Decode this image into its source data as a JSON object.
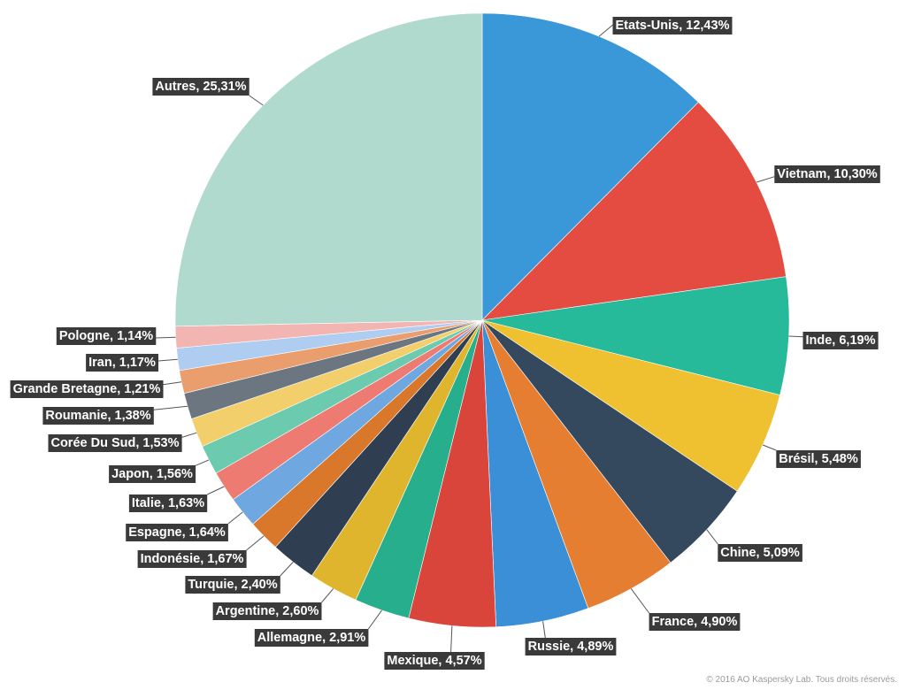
{
  "chart_data": {
    "type": "pie",
    "start": "top",
    "direction": "clockwise",
    "slices": [
      {
        "label": "Etats-Unis",
        "value": 12.43,
        "display": "Etats-Unis, 12,43%",
        "color": "#3A98D8"
      },
      {
        "label": "Vietnam",
        "value": 10.3,
        "display": "Vietnam, 10,30%",
        "color": "#E44C41"
      },
      {
        "label": "Inde",
        "value": 6.19,
        "display": "Inde, 6,19%",
        "color": "#26B99A"
      },
      {
        "label": "Brésil",
        "value": 5.48,
        "display": "Brésil, 5,48%",
        "color": "#EFC130"
      },
      {
        "label": "Chine",
        "value": 5.09,
        "display": "Chine, 5,09%",
        "color": "#34495E"
      },
      {
        "label": "France",
        "value": 4.9,
        "display": "France, 4,90%",
        "color": "#E57E30"
      },
      {
        "label": "Russie",
        "value": 4.89,
        "display": "Russie, 4,89%",
        "color": "#3A8FD6"
      },
      {
        "label": "Mexique",
        "value": 4.57,
        "display": "Mexique, 4,57%",
        "color": "#D9453A"
      },
      {
        "label": "Allemagne",
        "value": 2.91,
        "display": "Allemagne, 2,91%",
        "color": "#27AE8C"
      },
      {
        "label": "Argentine",
        "value": 2.6,
        "display": "Argentine, 2,60%",
        "color": "#E0B52E"
      },
      {
        "label": "Turquie",
        "value": 2.4,
        "display": "Turquie, 2,40%",
        "color": "#2F3E50"
      },
      {
        "label": "Indonésie",
        "value": 1.67,
        "display": "Indonésie, 1,67%",
        "color": "#D9772A"
      },
      {
        "label": "Espagne",
        "value": 1.64,
        "display": "Espagne, 1,64%",
        "color": "#6FA8E0"
      },
      {
        "label": "Italie",
        "value": 1.63,
        "display": "Italie, 1,63%",
        "color": "#EE7B72"
      },
      {
        "label": "Japon",
        "value": 1.56,
        "display": "Japon, 1,56%",
        "color": "#6CCAAF"
      },
      {
        "label": "Corée Du Sud",
        "value": 1.53,
        "display": "Corée Du Sud, 1,53%",
        "color": "#F2CF6B"
      },
      {
        "label": "Roumanie",
        "value": 1.38,
        "display": "Roumanie, 1,38%",
        "color": "#6C7680"
      },
      {
        "label": "Grande Bretagne",
        "value": 1.21,
        "display": "Grande Bretagne, 1,21%",
        "color": "#EA9D6D"
      },
      {
        "label": "Iran",
        "value": 1.17,
        "display": "Iran, 1,17%",
        "color": "#AFCDF0"
      },
      {
        "label": "Pologne",
        "value": 1.14,
        "display": "Pologne, 1,14%",
        "color": "#F2B5B2"
      },
      {
        "label": "Autres",
        "value": 25.31,
        "display": "Autres, 25,31%",
        "color": "#B1DACE"
      }
    ]
  },
  "copyright": "© 2016 AO Kaspersky Lab. Tous droits réservés."
}
